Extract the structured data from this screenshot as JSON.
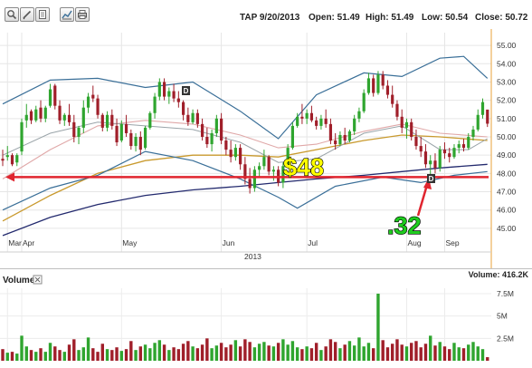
{
  "toolbar": {
    "buttons": [
      {
        "name": "zoom-icon"
      },
      {
        "name": "edit-icon"
      },
      {
        "name": "document-icon"
      },
      {
        "name": "chart-icon"
      },
      {
        "name": "print-icon"
      }
    ]
  },
  "header": {
    "symbol_date": "TAP 9/20/2013",
    "open": "Open: 51.49",
    "high": "High: 51.49",
    "low": "Low: 50.54",
    "close": "Close: 50.72"
  },
  "volume_panel": {
    "label": "Volume",
    "value": "Volume: 416.2K"
  },
  "annotations": {
    "level_label": "$48",
    "drop_label": ".32",
    "marker_letter": "D"
  },
  "colors": {
    "up": "#2fa52f",
    "down": "#a01f2a",
    "line_red": "#e0252f",
    "bollinger": "#3a6f98",
    "ma_short": "#e0a8a8",
    "ma_mid": "#c99a2e",
    "ma_long": "#232a6e",
    "accent": "#7db2d3",
    "arrow_green": "#1ecc1e"
  },
  "chart_data": {
    "type": "candlestick",
    "y_ticks": [
      "45.00",
      "46.00",
      "47.00",
      "48.00",
      "49.00",
      "50.00",
      "51.00",
      "52.00",
      "53.00",
      "54.00",
      "55.00"
    ],
    "ylim": [
      44.3,
      55.6
    ],
    "x_ticks": [
      "Mar",
      "Apr",
      "May",
      "Jun",
      "Jul",
      "Aug",
      "Sep"
    ],
    "x_sublabel": "2013",
    "horizontal_line": 47.8,
    "candles": [
      [
        48.8,
        49.3,
        48.4,
        48.7
      ],
      [
        48.9,
        49.5,
        48.7,
        49.0
      ],
      [
        49.0,
        49.1,
        48.4,
        48.5
      ],
      [
        48.6,
        49.1,
        48.4,
        49.0
      ],
      [
        49.2,
        51.0,
        49.0,
        50.8
      ],
      [
        50.9,
        51.8,
        50.5,
        51.2
      ],
      [
        51.4,
        51.5,
        50.7,
        50.9
      ],
      [
        50.9,
        51.7,
        50.8,
        51.5
      ],
      [
        51.6,
        52.0,
        50.8,
        51.0
      ],
      [
        51.0,
        51.7,
        50.8,
        51.6
      ],
      [
        51.7,
        52.9,
        51.6,
        52.6
      ],
      [
        52.8,
        52.9,
        51.5,
        51.7
      ],
      [
        51.7,
        52.0,
        50.7,
        50.9
      ],
      [
        50.9,
        51.3,
        50.6,
        51.2
      ],
      [
        51.2,
        51.8,
        50.6,
        50.8
      ],
      [
        50.8,
        51.2,
        49.7,
        50.0
      ],
      [
        50.0,
        50.6,
        49.6,
        50.5
      ],
      [
        50.5,
        52.0,
        50.2,
        51.6
      ],
      [
        51.6,
        52.4,
        51.3,
        52.2
      ],
      [
        52.3,
        52.8,
        51.9,
        52.1
      ],
      [
        52.1,
        52.3,
        51.0,
        51.2
      ],
      [
        51.2,
        51.3,
        50.3,
        50.5
      ],
      [
        50.5,
        51.4,
        50.3,
        51.2
      ],
      [
        51.2,
        51.5,
        50.4,
        50.6
      ],
      [
        50.6,
        51.0,
        49.5,
        49.7
      ],
      [
        49.8,
        50.9,
        49.7,
        50.7
      ],
      [
        50.7,
        51.2,
        50.0,
        50.2
      ],
      [
        50.2,
        50.4,
        49.3,
        49.5
      ],
      [
        49.5,
        50.2,
        49.2,
        50.0
      ],
      [
        50.0,
        50.3,
        49.0,
        49.3
      ],
      [
        49.4,
        50.6,
        49.3,
        50.5
      ],
      [
        50.5,
        51.4,
        50.4,
        51.3
      ],
      [
        51.3,
        52.4,
        51.0,
        52.2
      ],
      [
        52.2,
        53.2,
        52.0,
        53.0
      ],
      [
        53.0,
        53.2,
        52.0,
        52.2
      ],
      [
        52.2,
        52.7,
        51.8,
        52.5
      ],
      [
        52.5,
        52.9,
        51.9,
        52.1
      ],
      [
        52.1,
        52.5,
        51.6,
        51.9
      ],
      [
        51.9,
        52.0,
        50.9,
        51.2
      ],
      [
        51.2,
        51.6,
        50.6,
        50.8
      ],
      [
        50.8,
        51.5,
        50.7,
        51.3
      ],
      [
        51.3,
        51.5,
        50.5,
        50.7
      ],
      [
        50.7,
        51.0,
        49.8,
        50.0
      ],
      [
        50.0,
        50.5,
        49.4,
        49.6
      ],
      [
        49.6,
        50.4,
        49.2,
        50.2
      ],
      [
        50.2,
        51.2,
        50.0,
        51.0
      ],
      [
        51.0,
        51.3,
        49.6,
        49.8
      ],
      [
        49.8,
        50.0,
        49.0,
        49.3
      ],
      [
        49.3,
        49.8,
        48.6,
        48.9
      ],
      [
        48.9,
        49.6,
        48.7,
        49.4
      ],
      [
        49.4,
        49.6,
        48.2,
        48.5
      ],
      [
        48.5,
        48.9,
        47.4,
        47.7
      ],
      [
        47.7,
        48.3,
        46.9,
        47.2
      ],
      [
        47.2,
        48.4,
        47.0,
        48.2
      ],
      [
        48.2,
        48.6,
        47.8,
        48.4
      ],
      [
        48.4,
        49.3,
        48.2,
        48.9
      ],
      [
        48.9,
        49.0,
        47.9,
        48.1
      ],
      [
        48.1,
        48.4,
        47.6,
        48.2
      ],
      [
        48.2,
        48.4,
        47.3,
        47.5
      ],
      [
        47.5,
        48.6,
        47.2,
        48.4
      ],
      [
        48.4,
        49.6,
        48.3,
        49.4
      ],
      [
        49.4,
        50.8,
        49.3,
        50.6
      ],
      [
        50.6,
        51.3,
        50.5,
        51.1
      ],
      [
        51.1,
        51.8,
        50.7,
        51.0
      ],
      [
        51.0,
        51.5,
        50.7,
        51.3
      ],
      [
        51.3,
        51.7,
        50.8,
        50.9
      ],
      [
        50.9,
        51.1,
        50.4,
        50.6
      ],
      [
        50.6,
        51.2,
        50.4,
        51.0
      ],
      [
        51.0,
        51.5,
        50.5,
        50.7
      ],
      [
        50.7,
        51.0,
        49.6,
        49.8
      ],
      [
        49.8,
        50.2,
        49.3,
        49.6
      ],
      [
        49.6,
        50.3,
        49.5,
        50.1
      ],
      [
        50.1,
        50.5,
        49.6,
        49.8
      ],
      [
        49.8,
        50.4,
        49.7,
        50.3
      ],
      [
        50.3,
        51.2,
        50.1,
        51.0
      ],
      [
        51.0,
        51.6,
        50.8,
        51.4
      ],
      [
        51.4,
        52.6,
        51.3,
        52.4
      ],
      [
        52.4,
        53.5,
        52.3,
        53.2
      ],
      [
        53.2,
        53.4,
        52.2,
        52.4
      ],
      [
        52.4,
        53.6,
        52.3,
        53.4
      ],
      [
        53.4,
        53.6,
        52.6,
        52.8
      ],
      [
        52.8,
        53.1,
        52.1,
        52.3
      ],
      [
        52.3,
        52.8,
        51.6,
        51.8
      ],
      [
        51.8,
        52.0,
        50.9,
        51.1
      ],
      [
        51.1,
        51.5,
        50.2,
        50.5
      ],
      [
        50.5,
        51.0,
        49.9,
        50.8
      ],
      [
        50.8,
        51.0,
        49.8,
        50.0
      ],
      [
        50.0,
        50.4,
        49.3,
        49.5
      ],
      [
        49.5,
        50.0,
        48.9,
        49.2
      ],
      [
        49.2,
        49.6,
        48.3,
        48.5
      ],
      [
        48.5,
        49.0,
        47.9,
        48.7
      ],
      [
        48.7,
        49.1,
        48.0,
        48.3
      ],
      [
        48.3,
        49.5,
        48.1,
        49.3
      ],
      [
        49.3,
        49.7,
        48.8,
        49.1
      ],
      [
        49.1,
        49.4,
        48.6,
        48.9
      ],
      [
        48.9,
        49.6,
        48.8,
        49.4
      ],
      [
        49.4,
        49.8,
        49.1,
        49.6
      ],
      [
        49.6,
        49.9,
        49.2,
        49.4
      ],
      [
        49.4,
        50.2,
        49.3,
        50.0
      ],
      [
        50.0,
        50.6,
        49.8,
        50.4
      ],
      [
        50.4,
        51.5,
        50.3,
        51.2
      ],
      [
        51.2,
        52.1,
        51.0,
        51.9
      ],
      [
        51.49,
        51.49,
        50.54,
        50.72
      ]
    ],
    "bollinger_upper": [
      [
        0,
        51.8
      ],
      [
        10,
        53.1
      ],
      [
        20,
        53.2
      ],
      [
        30,
        52.7
      ],
      [
        40,
        53.0
      ],
      [
        50,
        51.4
      ],
      [
        58,
        49.9
      ],
      [
        66,
        52.3
      ],
      [
        76,
        53.5
      ],
      [
        84,
        53.3
      ],
      [
        92,
        54.3
      ],
      [
        97,
        54.4
      ],
      [
        102,
        53.2
      ]
    ],
    "bollinger_lower": [
      [
        0,
        46.0
      ],
      [
        10,
        47.2
      ],
      [
        20,
        47.9
      ],
      [
        30,
        49.2
      ],
      [
        40,
        48.7
      ],
      [
        50,
        47.7
      ],
      [
        58,
        46.7
      ],
      [
        62,
        46.1
      ],
      [
        70,
        47.3
      ],
      [
        80,
        47.8
      ],
      [
        88,
        47.5
      ],
      [
        95,
        47.9
      ],
      [
        102,
        48.1
      ]
    ],
    "bollinger_mid": [
      [
        0,
        49.0
      ],
      [
        10,
        50.2
      ],
      [
        20,
        50.8
      ],
      [
        30,
        50.6
      ],
      [
        40,
        50.4
      ],
      [
        50,
        49.7
      ],
      [
        58,
        48.6
      ],
      [
        66,
        48.8
      ],
      [
        76,
        50.2
      ],
      [
        84,
        50.6
      ],
      [
        92,
        49.3
      ],
      [
        98,
        49.3
      ],
      [
        102,
        49.9
      ]
    ],
    "ma_short": [
      [
        0,
        47.7
      ],
      [
        10,
        49.3
      ],
      [
        20,
        50.6
      ],
      [
        30,
        50.9
      ],
      [
        40,
        50.7
      ],
      [
        50,
        50.1
      ],
      [
        58,
        49.4
      ],
      [
        66,
        49.6
      ],
      [
        76,
        50.3
      ],
      [
        84,
        50.7
      ],
      [
        92,
        50.2
      ],
      [
        102,
        50.0
      ]
    ],
    "ma_mid": [
      [
        0,
        45.4
      ],
      [
        10,
        46.8
      ],
      [
        20,
        48.0
      ],
      [
        30,
        48.7
      ],
      [
        40,
        49.0
      ],
      [
        50,
        49.0
      ],
      [
        58,
        48.9
      ],
      [
        66,
        49.3
      ],
      [
        76,
        49.8
      ],
      [
        84,
        50.1
      ],
      [
        92,
        50.0
      ],
      [
        102,
        49.8
      ]
    ],
    "ma_long": [
      [
        0,
        44.6
      ],
      [
        10,
        45.6
      ],
      [
        20,
        46.3
      ],
      [
        30,
        46.8
      ],
      [
        40,
        47.1
      ],
      [
        50,
        47.3
      ],
      [
        58,
        47.5
      ],
      [
        66,
        47.7
      ],
      [
        76,
        47.9
      ],
      [
        84,
        48.1
      ],
      [
        92,
        48.3
      ],
      [
        102,
        48.5
      ]
    ],
    "volume": {
      "y_ticks": [
        "2.5M",
        "5M",
        "7.5M"
      ],
      "ylim": [
        0,
        7.7
      ],
      "values": [
        1.3,
        0.9,
        1.0,
        0.8,
        2.8,
        1.6,
        1.2,
        1.0,
        1.4,
        1.0,
        2.0,
        1.6,
        1.2,
        1.0,
        1.8,
        2.4,
        1.2,
        1.5,
        2.6,
        1.4,
        1.0,
        1.9,
        1.3,
        1.2,
        1.5,
        1.1,
        1.3,
        2.2,
        1.2,
        1.6,
        1.8,
        1.4,
        2.0,
        2.3,
        1.8,
        1.2,
        1.5,
        1.3,
        1.9,
        2.2,
        1.6,
        1.4,
        1.8,
        2.5,
        1.4,
        1.7,
        2.0,
        1.5,
        1.8,
        2.3,
        1.6,
        2.4,
        2.1,
        1.5,
        1.9,
        2.1,
        1.7,
        1.6,
        2.0,
        2.4,
        1.8,
        2.2,
        1.5,
        1.3,
        1.6,
        1.4,
        2.0,
        1.2,
        1.6,
        2.4,
        2.1,
        1.4,
        1.8,
        2.2,
        1.7,
        2.6,
        1.6,
        2.0,
        1.4,
        7.5,
        2.3,
        1.5,
        1.9,
        2.4,
        1.8,
        1.6,
        2.0,
        2.2,
        1.5,
        1.9,
        2.8,
        1.7,
        2.1,
        1.6,
        1.3,
        2.0,
        1.5,
        1.4,
        1.8,
        2.1,
        1.6,
        1.3,
        0.4
      ]
    }
  }
}
